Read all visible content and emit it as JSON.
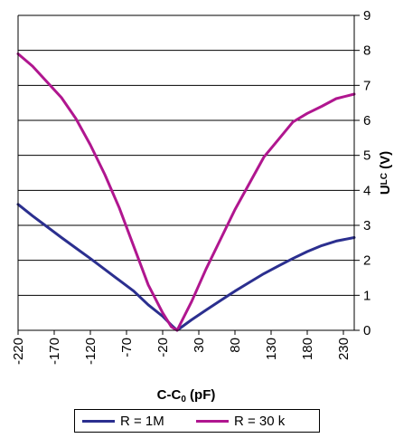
{
  "chart_data": {
    "type": "line",
    "xlabel_main": "C-C",
    "xlabel_sub": "0",
    "xlabel_unit": " (pF)",
    "ylabel_main": "U",
    "ylabel_sub": "LC",
    "ylabel_unit": " (V)",
    "xlim": [
      -220,
      245
    ],
    "ylim": [
      0,
      9
    ],
    "xticks": [
      "-220",
      "-170",
      "-120",
      "-70",
      "-20",
      "30",
      "80",
      "130",
      "180",
      "230"
    ],
    "yticks": [
      "0",
      "1",
      "2",
      "3",
      "4",
      "5",
      "6",
      "7",
      "8",
      "9"
    ],
    "grid": "horizontal",
    "legend_position": "bottom",
    "series": [
      {
        "name": "R = 1M",
        "color": "#2b2f8f",
        "x": [
          -220,
          -200,
          -180,
          -160,
          -140,
          -120,
          -100,
          -80,
          -60,
          -40,
          -20,
          -8,
          0,
          20,
          40,
          60,
          80,
          100,
          120,
          140,
          160,
          180,
          200,
          220,
          245
        ],
        "y": [
          3.6,
          3.27,
          2.96,
          2.65,
          2.35,
          2.05,
          1.74,
          1.43,
          1.12,
          0.73,
          0.4,
          0.15,
          0.0,
          0.3,
          0.58,
          0.85,
          1.12,
          1.37,
          1.62,
          1.84,
          2.05,
          2.25,
          2.42,
          2.55,
          2.65
        ]
      },
      {
        "name": "R = 30 k",
        "color": "#b0168f",
        "x": [
          -220,
          -200,
          -180,
          -160,
          -140,
          -120,
          -100,
          -80,
          -60,
          -40,
          -20,
          -8,
          0,
          20,
          40,
          60,
          80,
          100,
          120,
          140,
          160,
          180,
          200,
          220,
          245
        ],
        "y": [
          7.9,
          7.55,
          7.1,
          6.65,
          6.05,
          5.3,
          4.45,
          3.5,
          2.4,
          1.3,
          0.5,
          0.1,
          0.0,
          0.82,
          1.75,
          2.6,
          3.45,
          4.2,
          4.95,
          5.45,
          5.95,
          6.2,
          6.4,
          6.62,
          6.75
        ]
      }
    ]
  }
}
